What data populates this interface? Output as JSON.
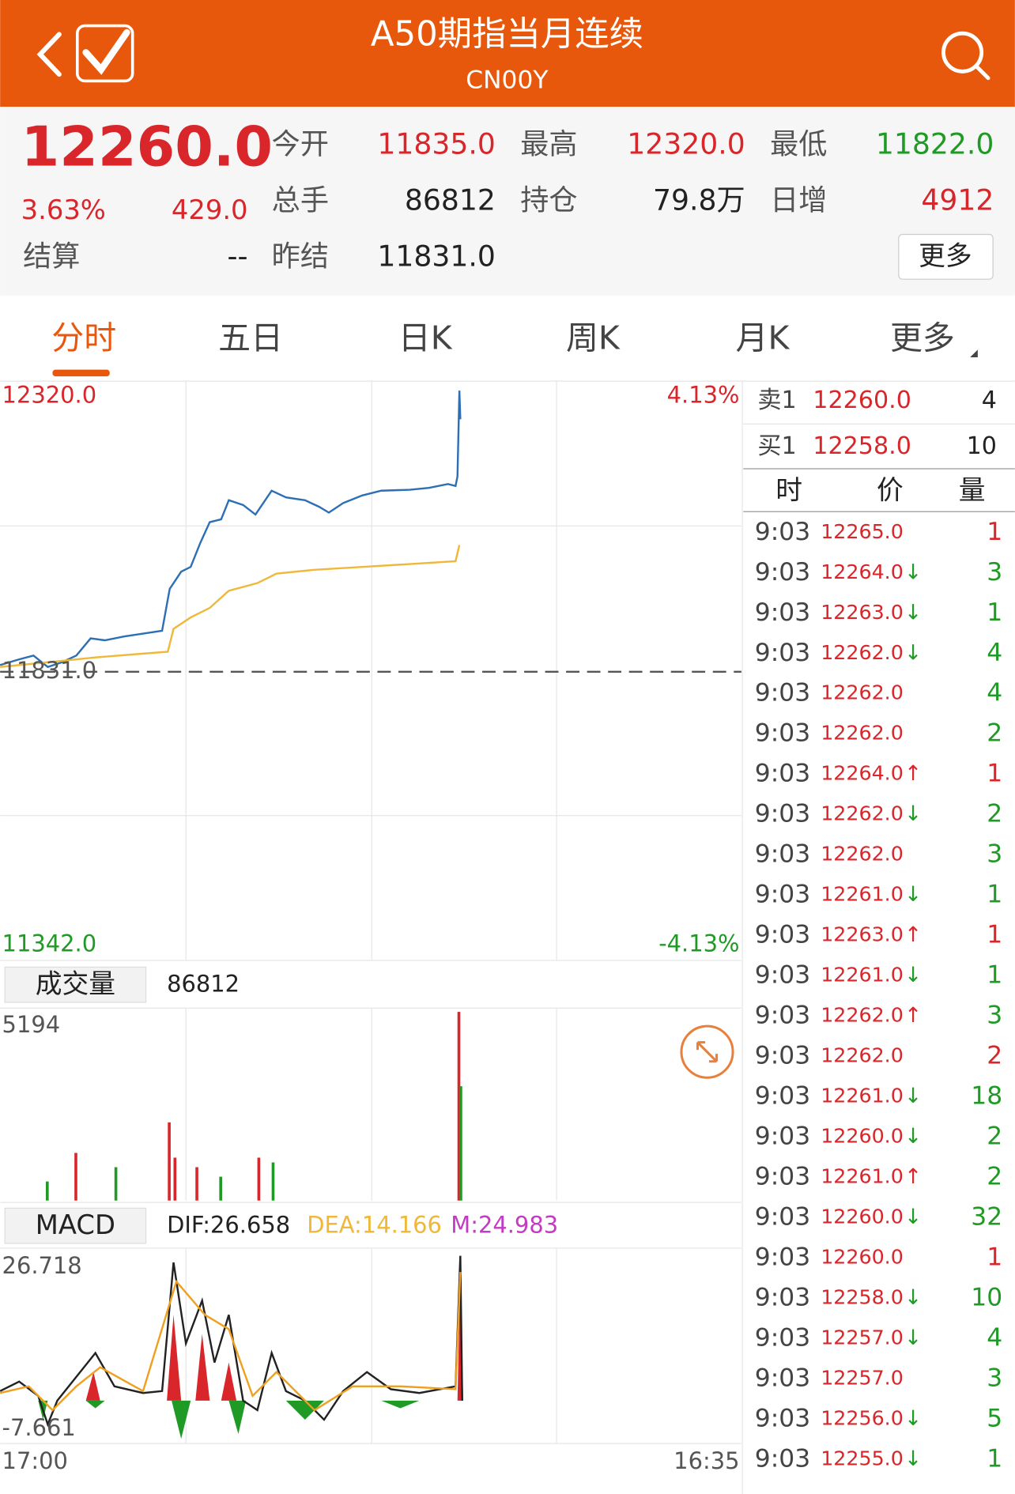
{
  "header": {
    "title": "A50期指当月连续",
    "code": "CN00Y"
  },
  "quote": {
    "price": "12260.0",
    "change_pct": "3.63%",
    "change": "429.0",
    "fields": [
      {
        "label": "今开",
        "value": "11835.0",
        "color": "#d8262b"
      },
      {
        "label": "最高",
        "value": "12320.0",
        "color": "#d8262b"
      },
      {
        "label": "最低",
        "value": "11822.0",
        "color": "#1f9a25"
      },
      {
        "label": "总手",
        "value": "86812",
        "color": "#222222"
      },
      {
        "label": "持仓",
        "value": "79.8万",
        "color": "#222222"
      },
      {
        "label": "日增",
        "value": "4912",
        "color": "#d8262b"
      },
      {
        "label": "结算",
        "value": "--",
        "color": "#222222"
      },
      {
        "label": "昨结",
        "value": "11831.0",
        "color": "#222222"
      }
    ],
    "more": "更多"
  },
  "tabs": [
    "分时",
    "五日",
    "日K",
    "周K",
    "月K",
    "更多"
  ],
  "chart": {
    "y_max": "12320.0",
    "y_min": "11342.0",
    "pct_max": "4.13%",
    "pct_min": "-4.13%",
    "ref": "11831.0",
    "volume_label": "成交量",
    "volume": "86812",
    "vol_max": "5194",
    "macd_label": "MACD",
    "dif": "DIF:26.658",
    "dea": "DEA:14.166",
    "m": "M:24.983",
    "macd_max": "26.718",
    "macd_min": "-7.661",
    "time_start": "17:00",
    "time_end": "16:35"
  },
  "orderbook": [
    {
      "label": "卖1",
      "price": "12260.0",
      "qty": "4"
    },
    {
      "label": "买1",
      "price": "12258.0",
      "qty": "10"
    }
  ],
  "trades_header": [
    "时",
    "价",
    "量"
  ],
  "trades": [
    {
      "time": "9:03",
      "price": "12265.0",
      "arrow": "",
      "arrow_color": "",
      "qty": "1",
      "qty_color": "#d8262b"
    },
    {
      "time": "9:03",
      "price": "12264.0",
      "arrow": "↓",
      "arrow_color": "#1f9a25",
      "qty": "3",
      "qty_color": "#1f9a25"
    },
    {
      "time": "9:03",
      "price": "12263.0",
      "arrow": "↓",
      "arrow_color": "#1f9a25",
      "qty": "1",
      "qty_color": "#1f9a25"
    },
    {
      "time": "9:03",
      "price": "12262.0",
      "arrow": "↓",
      "arrow_color": "#1f9a25",
      "qty": "4",
      "qty_color": "#1f9a25"
    },
    {
      "time": "9:03",
      "price": "12262.0",
      "arrow": "",
      "arrow_color": "",
      "qty": "4",
      "qty_color": "#1f9a25"
    },
    {
      "time": "9:03",
      "price": "12262.0",
      "arrow": "",
      "arrow_color": "",
      "qty": "2",
      "qty_color": "#1f9a25"
    },
    {
      "time": "9:03",
      "price": "12264.0",
      "arrow": "↑",
      "arrow_color": "#d8262b",
      "qty": "1",
      "qty_color": "#d8262b"
    },
    {
      "time": "9:03",
      "price": "12262.0",
      "arrow": "↓",
      "arrow_color": "#1f9a25",
      "qty": "2",
      "qty_color": "#1f9a25"
    },
    {
      "time": "9:03",
      "price": "12262.0",
      "arrow": "",
      "arrow_color": "",
      "qty": "3",
      "qty_color": "#1f9a25"
    },
    {
      "time": "9:03",
      "price": "12261.0",
      "arrow": "↓",
      "arrow_color": "#1f9a25",
      "qty": "1",
      "qty_color": "#1f9a25"
    },
    {
      "time": "9:03",
      "price": "12263.0",
      "arrow": "↑",
      "arrow_color": "#d8262b",
      "qty": "1",
      "qty_color": "#d8262b"
    },
    {
      "time": "9:03",
      "price": "12261.0",
      "arrow": "↓",
      "arrow_color": "#1f9a25",
      "qty": "1",
      "qty_color": "#1f9a25"
    },
    {
      "time": "9:03",
      "price": "12262.0",
      "arrow": "↑",
      "arrow_color": "#d8262b",
      "qty": "3",
      "qty_color": "#1f9a25"
    },
    {
      "time": "9:03",
      "price": "12262.0",
      "arrow": "",
      "arrow_color": "",
      "qty": "2",
      "qty_color": "#d8262b"
    },
    {
      "time": "9:03",
      "price": "12261.0",
      "arrow": "↓",
      "arrow_color": "#1f9a25",
      "qty": "18",
      "qty_color": "#1f9a25"
    },
    {
      "time": "9:03",
      "price": "12260.0",
      "arrow": "↓",
      "arrow_color": "#1f9a25",
      "qty": "2",
      "qty_color": "#1f9a25"
    },
    {
      "time": "9:03",
      "price": "12261.0",
      "arrow": "↑",
      "arrow_color": "#d8262b",
      "qty": "2",
      "qty_color": "#1f9a25"
    },
    {
      "time": "9:03",
      "price": "12260.0",
      "arrow": "↓",
      "arrow_color": "#1f9a25",
      "qty": "32",
      "qty_color": "#1f9a25"
    },
    {
      "time": "9:03",
      "price": "12260.0",
      "arrow": "",
      "arrow_color": "",
      "qty": "1",
      "qty_color": "#d8262b"
    },
    {
      "time": "9:03",
      "price": "12258.0",
      "arrow": "↓",
      "arrow_color": "#1f9a25",
      "qty": "10",
      "qty_color": "#1f9a25"
    },
    {
      "time": "9:03",
      "price": "12257.0",
      "arrow": "↓",
      "arrow_color": "#1f9a25",
      "qty": "4",
      "qty_color": "#1f9a25"
    },
    {
      "time": "9:03",
      "price": "12257.0",
      "arrow": "",
      "arrow_color": "",
      "qty": "3",
      "qty_color": "#1f9a25"
    },
    {
      "time": "9:03",
      "price": "12256.0",
      "arrow": "↓",
      "arrow_color": "#1f9a25",
      "qty": "5",
      "qty_color": "#1f9a25"
    },
    {
      "time": "9:03",
      "price": "12255.0",
      "arrow": "↓",
      "arrow_color": "#1f9a25",
      "qty": "1",
      "qty_color": "#1f9a25"
    }
  ]
}
